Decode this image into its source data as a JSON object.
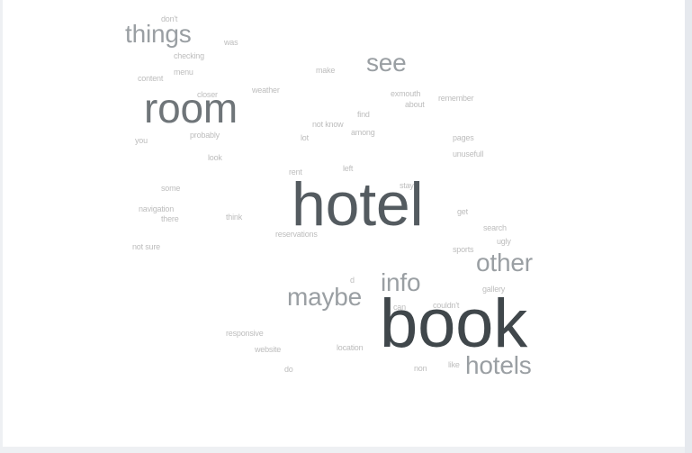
{
  "word_cloud": {
    "words": [
      {
        "text": "book"
      },
      {
        "text": "hotel"
      },
      {
        "text": "room"
      },
      {
        "text": "hotels"
      },
      {
        "text": "other"
      },
      {
        "text": "maybe"
      },
      {
        "text": "info"
      },
      {
        "text": "see"
      },
      {
        "text": "things"
      },
      {
        "text": "don't"
      },
      {
        "text": "was"
      },
      {
        "text": "checking"
      },
      {
        "text": "menu"
      },
      {
        "text": "content"
      },
      {
        "text": "make"
      },
      {
        "text": "exmouth"
      },
      {
        "text": "about"
      },
      {
        "text": "remember"
      },
      {
        "text": "closer"
      },
      {
        "text": "weather"
      },
      {
        "text": "find"
      },
      {
        "text": "not know"
      },
      {
        "text": "among"
      },
      {
        "text": "lot"
      },
      {
        "text": "probably"
      },
      {
        "text": "you"
      },
      {
        "text": "pages"
      },
      {
        "text": "unusefull"
      },
      {
        "text": "look"
      },
      {
        "text": "left"
      },
      {
        "text": "rent"
      },
      {
        "text": "stay"
      },
      {
        "text": "some"
      },
      {
        "text": "get"
      },
      {
        "text": "navigation"
      },
      {
        "text": "there"
      },
      {
        "text": "think"
      },
      {
        "text": "search"
      },
      {
        "text": "reservations"
      },
      {
        "text": "ugly"
      },
      {
        "text": "not sure"
      },
      {
        "text": "sports"
      },
      {
        "text": "d"
      },
      {
        "text": "gallery"
      },
      {
        "text": "can"
      },
      {
        "text": "couldn't"
      },
      {
        "text": "responsive"
      },
      {
        "text": "website"
      },
      {
        "text": "location"
      },
      {
        "text": "do"
      },
      {
        "text": "non"
      },
      {
        "text": "like"
      }
    ]
  }
}
